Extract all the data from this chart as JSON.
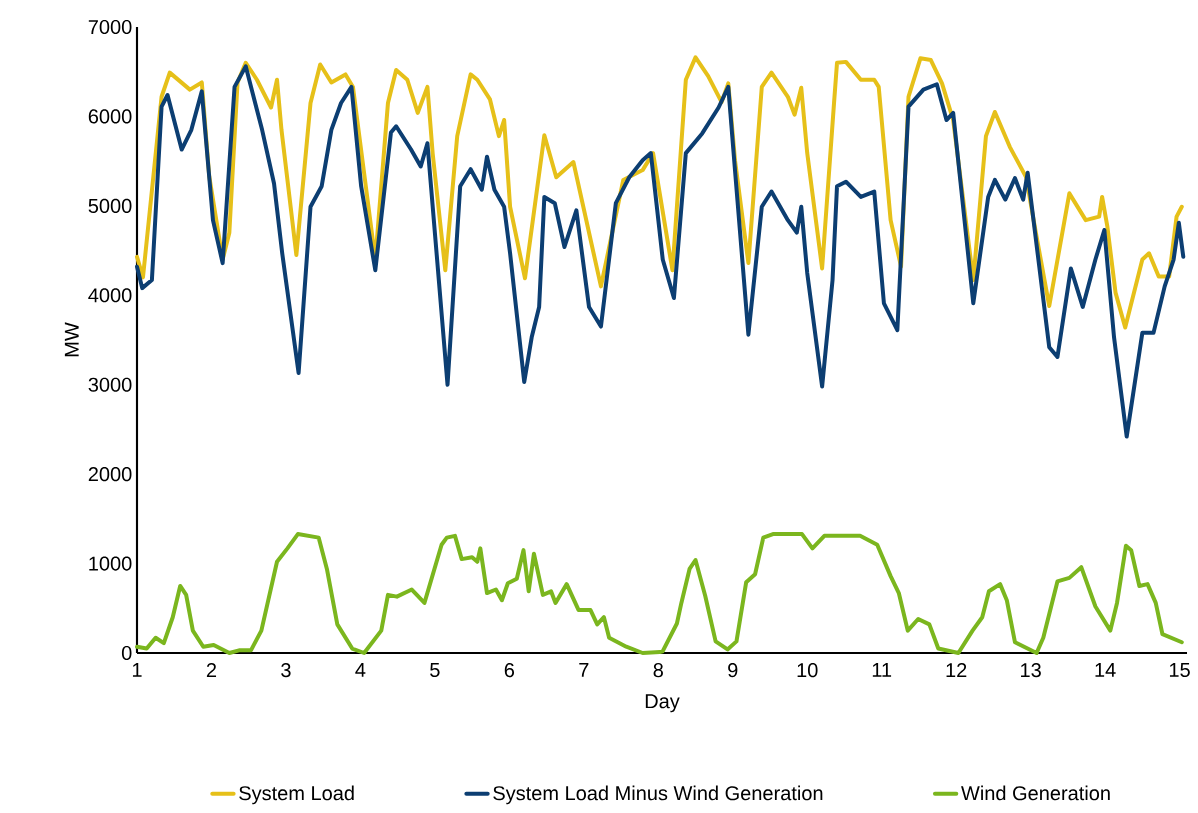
{
  "chart_data": {
    "type": "line",
    "xlabel": "Day",
    "ylabel": "MW",
    "xlim": [
      1,
      15.1
    ],
    "xticks": [
      1,
      2,
      3,
      4,
      5,
      6,
      7,
      8,
      9,
      10,
      11,
      12,
      13,
      14,
      15
    ],
    "ylim": [
      0,
      7000
    ],
    "yticks": [
      0,
      1000,
      2000,
      3000,
      4000,
      5000,
      6000,
      7000
    ],
    "legend": "bottom",
    "series": [
      {
        "name": "System Load",
        "color": "#e6c019",
        "x": [
          1.0,
          1.08,
          1.33,
          1.44,
          1.71,
          1.87,
          1.97,
          2.15,
          2.24,
          2.35,
          2.46,
          2.61,
          2.8,
          2.88,
          2.94,
          3.14,
          3.33,
          3.46,
          3.61,
          3.8,
          3.9,
          4.2,
          4.37,
          4.48,
          4.63,
          4.77,
          4.9,
          4.97,
          5.14,
          5.3,
          5.48,
          5.57,
          5.74,
          5.86,
          5.93,
          6.01,
          6.21,
          6.47,
          6.63,
          6.86,
          7.23,
          7.53,
          7.79,
          7.93,
          8.19,
          8.37,
          8.5,
          8.67,
          8.85,
          8.94,
          9.03,
          9.21,
          9.39,
          9.52,
          9.74,
          9.83,
          9.92,
          10.0,
          10.2,
          10.36,
          10.4,
          10.52,
          10.72,
          10.9,
          10.96,
          11.12,
          11.26,
          11.36,
          11.52,
          11.66,
          11.81,
          11.96,
          12.23,
          12.4,
          12.52,
          12.72,
          12.94,
          13.07,
          13.25,
          13.52,
          13.74,
          13.92,
          13.96,
          14.03,
          14.14,
          14.27,
          14.5,
          14.59,
          14.72,
          14.86,
          14.96,
          15.03
        ],
        "values": [
          4430,
          4200,
          6220,
          6490,
          6300,
          6380,
          5330,
          4400,
          4700,
          6380,
          6600,
          6410,
          6100,
          6410,
          5850,
          4450,
          6150,
          6580,
          6380,
          6470,
          6330,
          4400,
          6150,
          6520,
          6410,
          6040,
          6330,
          5590,
          4280,
          5780,
          6470,
          6410,
          6190,
          5780,
          5960,
          4990,
          4190,
          5790,
          5320,
          5490,
          4100,
          5290,
          5400,
          5590,
          4280,
          6410,
          6660,
          6450,
          6160,
          6370,
          5510,
          4360,
          6330,
          6490,
          6220,
          6020,
          6320,
          5590,
          4300,
          6150,
          6600,
          6610,
          6410,
          6410,
          6330,
          4840,
          4320,
          6220,
          6650,
          6630,
          6370,
          5960,
          4170,
          5780,
          6050,
          5660,
          5320,
          4700,
          3880,
          5140,
          4840,
          4880,
          5100,
          4770,
          4030,
          3640,
          4400,
          4470,
          4210,
          4210,
          4880,
          4990
        ]
      },
      {
        "name": "System Load Minus Wind Generation",
        "color": "#0c3e72",
        "x": [
          1.0,
          1.07,
          1.2,
          1.33,
          1.41,
          1.6,
          1.73,
          1.87,
          2.02,
          2.15,
          2.31,
          2.46,
          2.68,
          2.84,
          2.95,
          3.17,
          3.33,
          3.48,
          3.61,
          3.74,
          3.88,
          4.01,
          4.2,
          4.41,
          4.48,
          4.68,
          4.81,
          4.9,
          5.17,
          5.34,
          5.48,
          5.63,
          5.7,
          5.8,
          5.93,
          6.01,
          6.2,
          6.3,
          6.4,
          6.47,
          6.61,
          6.74,
          6.9,
          7.07,
          7.23,
          7.43,
          7.61,
          7.79,
          7.9,
          8.06,
          8.21,
          8.37,
          8.59,
          8.81,
          8.94,
          9.03,
          9.21,
          9.39,
          9.52,
          9.74,
          9.86,
          9.92,
          10.0,
          10.2,
          10.34,
          10.4,
          10.52,
          10.72,
          10.9,
          11.03,
          11.21,
          11.36,
          11.56,
          11.74,
          11.87,
          11.96,
          12.23,
          12.43,
          12.52,
          12.66,
          12.79,
          12.9,
          12.96,
          13.25,
          13.36,
          13.54,
          13.7,
          13.87,
          13.99,
          14.12,
          14.29,
          14.5,
          14.65,
          14.8,
          14.92,
          14.99,
          15.05
        ],
        "values": [
          4320,
          4080,
          4170,
          6110,
          6240,
          5630,
          5850,
          6280,
          4840,
          4360,
          6330,
          6560,
          5850,
          5250,
          4470,
          3130,
          4990,
          5220,
          5850,
          6150,
          6330,
          5220,
          4280,
          5820,
          5890,
          5630,
          5440,
          5700,
          3000,
          5220,
          5410,
          5180,
          5550,
          5180,
          4990,
          4470,
          3030,
          3530,
          3870,
          5100,
          5030,
          4540,
          4950,
          3870,
          3650,
          5030,
          5320,
          5510,
          5590,
          4400,
          3970,
          5590,
          5810,
          6100,
          6330,
          5400,
          3560,
          4990,
          5160,
          4840,
          4700,
          4990,
          4250,
          2980,
          4170,
          5220,
          5270,
          5100,
          5160,
          3910,
          3610,
          6110,
          6300,
          6360,
          5960,
          6040,
          3910,
          5100,
          5290,
          5070,
          5310,
          5070,
          5370,
          3420,
          3310,
          4300,
          3870,
          4400,
          4730,
          3530,
          2420,
          3580,
          3580,
          4100,
          4400,
          4810,
          4430
        ]
      },
      {
        "name": "Wind Generation",
        "color": "#7bb61e",
        "x": [
          1.0,
          1.13,
          1.25,
          1.36,
          1.48,
          1.58,
          1.66,
          1.75,
          1.89,
          2.03,
          2.24,
          2.37,
          2.53,
          2.67,
          2.88,
          3.02,
          3.16,
          3.44,
          3.55,
          3.69,
          3.89,
          4.05,
          4.28,
          4.37,
          4.49,
          4.69,
          4.86,
          5.09,
          5.16,
          5.27,
          5.36,
          5.5,
          5.57,
          5.61,
          5.7,
          5.82,
          5.9,
          5.98,
          6.1,
          6.19,
          6.26,
          6.33,
          6.45,
          6.56,
          6.62,
          6.77,
          6.93,
          7.09,
          7.18,
          7.27,
          7.34,
          7.57,
          7.79,
          8.02,
          8.06,
          8.25,
          8.31,
          8.42,
          8.5,
          8.63,
          8.77,
          8.93,
          9.05,
          9.18,
          9.3,
          9.41,
          9.54,
          9.93,
          10.07,
          10.23,
          10.71,
          10.94,
          11.12,
          11.23,
          11.35,
          11.49,
          11.64,
          11.76,
          12.03,
          12.22,
          12.35,
          12.44,
          12.59,
          12.68,
          12.79,
          13.08,
          13.17,
          13.36,
          13.52,
          13.68,
          13.87,
          14.07,
          14.16,
          14.28,
          14.35,
          14.46,
          14.57,
          14.68,
          14.77,
          15.03
        ],
        "values": [
          70,
          50,
          170,
          110,
          400,
          750,
          650,
          250,
          70,
          90,
          0,
          30,
          30,
          250,
          1020,
          1170,
          1330,
          1290,
          940,
          320,
          50,
          0,
          250,
          650,
          630,
          710,
          560,
          1210,
          1290,
          1310,
          1050,
          1070,
          1020,
          1170,
          670,
          710,
          590,
          780,
          830,
          1150,
          690,
          1110,
          650,
          690,
          560,
          770,
          480,
          480,
          320,
          400,
          170,
          70,
          0,
          10,
          20,
          330,
          560,
          940,
          1040,
          640,
          130,
          40,
          130,
          790,
          880,
          1290,
          1330,
          1330,
          1170,
          1310,
          1310,
          1210,
          860,
          670,
          250,
          380,
          320,
          50,
          0,
          250,
          400,
          690,
          770,
          590,
          120,
          0,
          170,
          800,
          840,
          960,
          520,
          250,
          560,
          1200,
          1150,
          750,
          770,
          560,
          210,
          120
        ]
      }
    ]
  }
}
